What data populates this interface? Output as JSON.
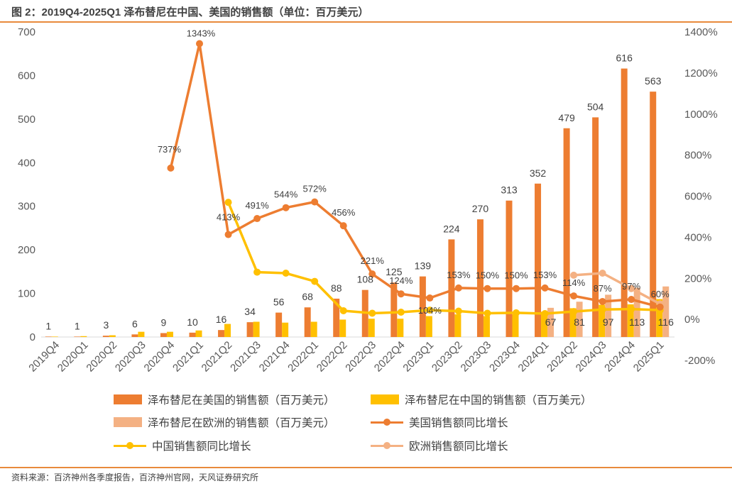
{
  "title": "图 2：2019Q4-2025Q1 泽布替尼在中国、美国的销售额（单位：百万美元）",
  "source": "资料来源：百济神州各季度报告，百济神州官网，天风证券研究所",
  "colors": {
    "us_bar": "#ed7d31",
    "cn_bar": "#ffc000",
    "eu_bar": "#f4b183",
    "us_line": "#ed7d31",
    "cn_line": "#ffc000",
    "eu_line": "#f4b183",
    "rule": "#e88a3c"
  },
  "chart_data": {
    "type": "bar",
    "categories": [
      "2019Q4",
      "2020Q1",
      "2020Q2",
      "2020Q3",
      "2020Q4",
      "2021Q1",
      "2021Q2",
      "2021Q3",
      "2021Q4",
      "2022Q1",
      "2022Q2",
      "2022Q3",
      "2022Q4",
      "2023Q1",
      "2023Q2",
      "2023Q3",
      "2023Q4",
      "2024Q1",
      "2024Q2",
      "2024Q3",
      "2024Q4",
      "2025Q1"
    ],
    "y_left": {
      "ylim": [
        0,
        700
      ],
      "ticks": [
        "0",
        "100",
        "200",
        "300",
        "400",
        "500",
        "600",
        "700"
      ]
    },
    "y_right": {
      "ylim": [
        -200,
        1400
      ],
      "ticks": [
        "-200%",
        "0%",
        "200%",
        "400%",
        "600%",
        "800%",
        "1000%",
        "1200%",
        "1400%"
      ]
    },
    "series": [
      {
        "name": "泽布替尼在美国的销售额（百万美元）",
        "kind": "bar",
        "axis": "left",
        "values": [
          1,
          1,
          3,
          6,
          9,
          10,
          16,
          34,
          56,
          68,
          88,
          108,
          125,
          139,
          224,
          270,
          313,
          352,
          479,
          504,
          616,
          563
        ],
        "labels": [
          "1",
          "1",
          "3",
          "6",
          "9",
          "10",
          "16",
          "34",
          "56",
          "68",
          "88",
          "108",
          "125",
          "139",
          "224",
          "270",
          "313",
          "352",
          "479",
          "504",
          "616",
          "563"
        ]
      },
      {
        "name": "泽布替尼在中国的销售额（百万美元）",
        "kind": "bar",
        "axis": "left",
        "values": [
          1,
          2,
          4,
          12,
          12,
          15,
          30,
          35,
          33,
          35,
          40,
          42,
          42,
          48,
          52,
          48,
          52,
          58,
          66,
          74,
          75,
          87
        ],
        "labels": []
      },
      {
        "name": "泽布替尼在欧洲的销售额（百万美元）",
        "kind": "bar",
        "axis": "left",
        "values": [
          null,
          null,
          null,
          null,
          null,
          null,
          null,
          null,
          null,
          null,
          null,
          null,
          null,
          null,
          null,
          null,
          null,
          67,
          81,
          97,
          113,
          116
        ],
        "labels": [
          "",
          "",
          "",
          "",
          "",
          "",
          "",
          "",
          "",
          "",
          "",
          "",
          "",
          "",
          "",
          "",
          "",
          "67",
          "81",
          "97",
          "113",
          "116"
        ]
      },
      {
        "name": "美国销售额同比增长",
        "kind": "line",
        "axis": "right",
        "values": [
          null,
          null,
          null,
          null,
          737,
          1343,
          413,
          491,
          544,
          572,
          456,
          221,
          124,
          104,
          153,
          150,
          150,
          153,
          114,
          87,
          97,
          60
        ],
        "labels": [
          "",
          "",
          "",
          "",
          "737%",
          "1343%",
          "413%",
          "491%",
          "544%",
          "572%",
          "456%",
          "221%",
          "124%",
          "104%",
          "153%",
          "150%",
          "150%",
          "153%",
          "114%",
          "87%",
          "97%",
          "60%"
        ]
      },
      {
        "name": "中国销售额同比增长",
        "kind": "line",
        "axis": "right",
        "values": [
          null,
          null,
          null,
          null,
          null,
          null,
          570,
          230,
          225,
          185,
          42,
          30,
          35,
          45,
          40,
          30,
          32,
          28,
          38,
          48,
          50,
          45
        ],
        "labels": []
      },
      {
        "name": "欧洲销售额同比增长",
        "kind": "line",
        "axis": "right",
        "values": [
          null,
          null,
          null,
          null,
          null,
          null,
          null,
          null,
          null,
          null,
          null,
          null,
          null,
          null,
          null,
          null,
          null,
          null,
          215,
          225,
          150,
          75
        ],
        "labels": []
      }
    ]
  },
  "legend": {
    "us_bar": "泽布替尼在美国的销售额（百万美元）",
    "cn_bar": "泽布替尼在中国的销售额（百万美元）",
    "eu_bar": "泽布替尼在欧洲的销售额（百万美元）",
    "us_line": "美国销售额同比增长",
    "cn_line": "中国销售额同比增长",
    "eu_line": "欧洲销售额同比增长"
  }
}
